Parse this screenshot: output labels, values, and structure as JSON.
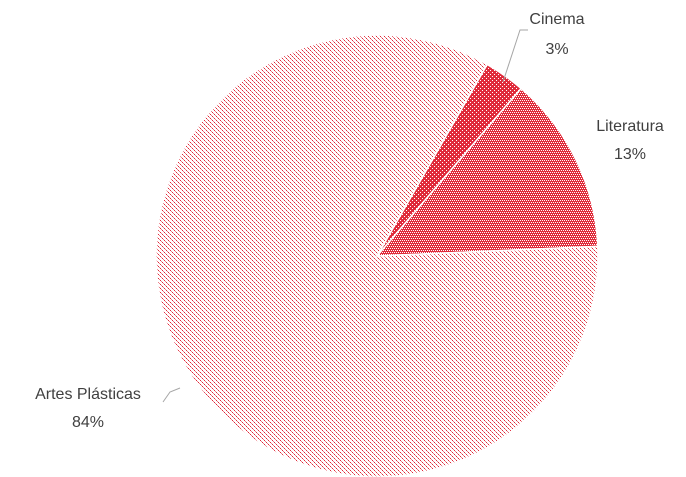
{
  "chart_data": {
    "type": "pie",
    "categories": [
      "Cinema",
      "Literatura",
      "Artes Plásticas"
    ],
    "values": [
      3,
      13,
      84
    ],
    "value_labels": [
      "3%",
      "13%",
      "84%"
    ],
    "colors": [
      "#e02a3a",
      "#e02a3a",
      "#e02a3a"
    ]
  }
}
